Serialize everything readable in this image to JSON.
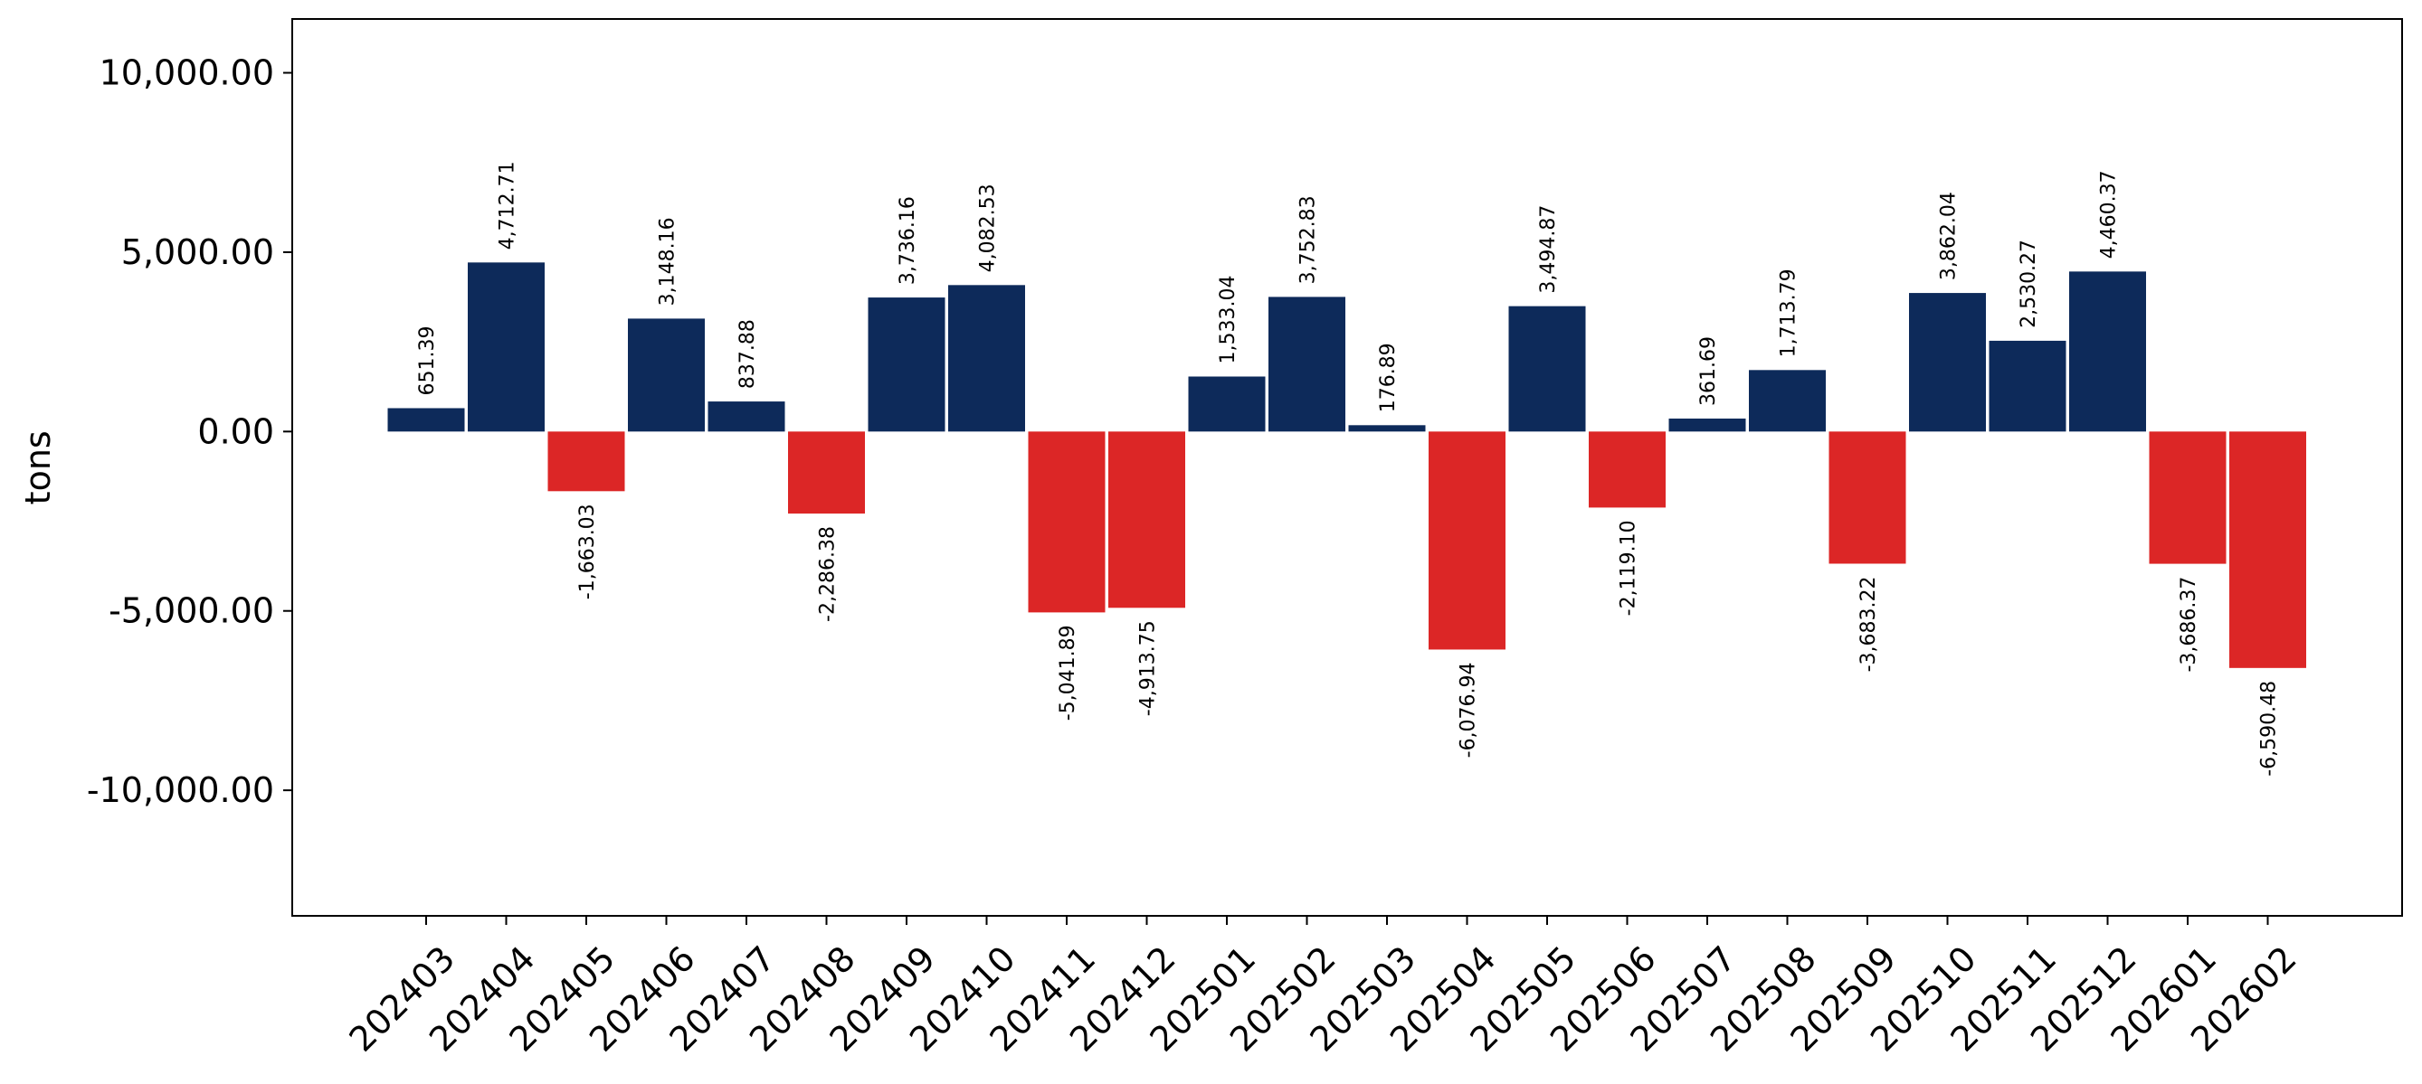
{
  "chart_data": {
    "type": "bar",
    "ylabel": "tons",
    "xlabel": "",
    "ylim": [
      -13500,
      11500
    ],
    "yticks": [
      -10000,
      -5000,
      0,
      5000,
      10000
    ],
    "ytick_labels": [
      "-10,000.00",
      "-5,000.00",
      "0.00",
      "5,000.00",
      "10,000.00"
    ],
    "grid": false,
    "colors": {
      "positive": "#0d2a5a",
      "negative": "#dc2626"
    },
    "categories": [
      "202403",
      "202404",
      "202405",
      "202406",
      "202407",
      "202408",
      "202409",
      "202410",
      "202411",
      "202412",
      "202501",
      "202502",
      "202503",
      "202504",
      "202505",
      "202506",
      "202507",
      "202508",
      "202509",
      "202510",
      "202511",
      "202512",
      "202601",
      "202602"
    ],
    "values": [
      651.39,
      4712.71,
      -1663.03,
      3148.16,
      837.88,
      -2286.38,
      3736.16,
      4082.53,
      -5041.89,
      -4913.75,
      1533.04,
      3752.83,
      176.89,
      -6076.94,
      3494.87,
      -2119.1,
      361.69,
      1713.79,
      -3683.22,
      3862.04,
      2530.27,
      4460.37,
      -3686.37,
      -6590.48
    ],
    "labels": [
      "651.39",
      "4,712.71",
      "-1,663.03",
      "3,148.16",
      "837.88",
      "-2,286.38",
      "3,736.16",
      "4,082.53",
      "-5,041.89",
      "-4,913.75",
      "1,533.04",
      "3,752.83",
      "176.89",
      "-6,076.94",
      "3,494.87",
      "-2,119.10",
      "361.69",
      "1,713.79",
      "-3,683.22",
      "3,862.04",
      "2,530.27",
      "4,460.37",
      "-3,686.37",
      "-6,590.48"
    ]
  }
}
